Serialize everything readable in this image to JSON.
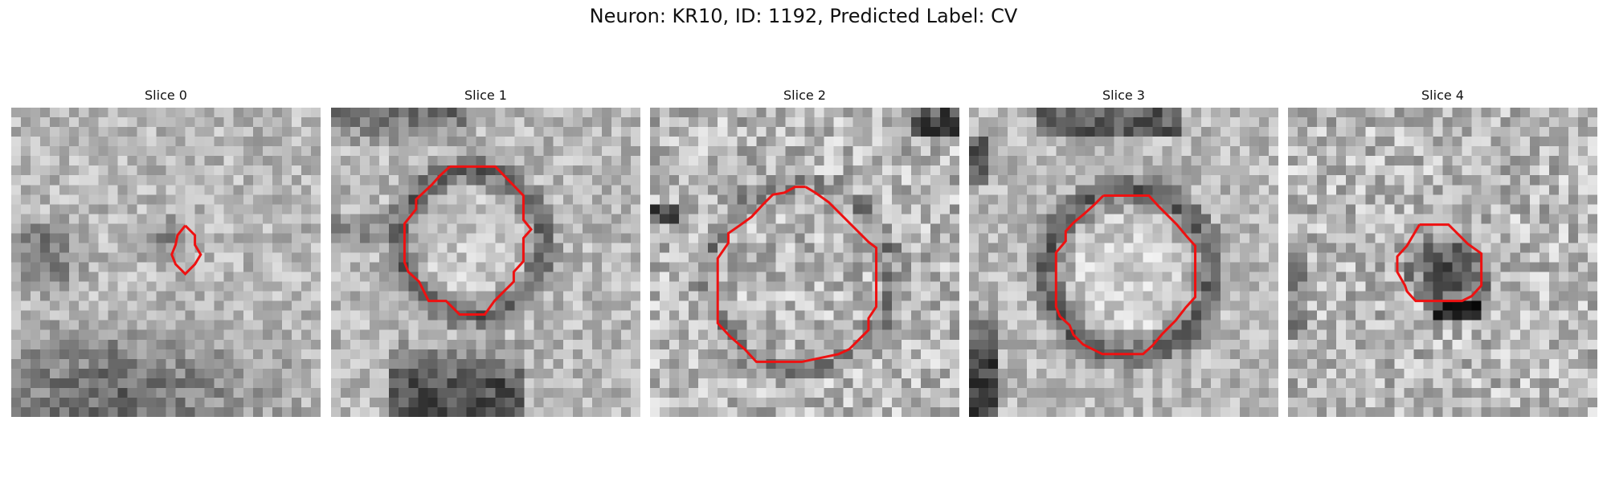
{
  "figure": {
    "title": "Neuron: KR10, ID: 1192, Predicted Label: CV"
  },
  "contour_color": "#ee1111",
  "colormap": "gray",
  "panels": [
    {
      "title": "Slice 0",
      "seed": 11,
      "dark_blob": "bottom-left"
    },
    {
      "title": "Slice 1",
      "seed": 23,
      "dark_blob": "ring"
    },
    {
      "title": "Slice 2",
      "seed": 37,
      "dark_blob": "ring"
    },
    {
      "title": "Slice 3",
      "seed": 41,
      "dark_blob": "ring"
    },
    {
      "title": "Slice 4",
      "seed": 53,
      "dark_blob": "center"
    }
  ]
}
